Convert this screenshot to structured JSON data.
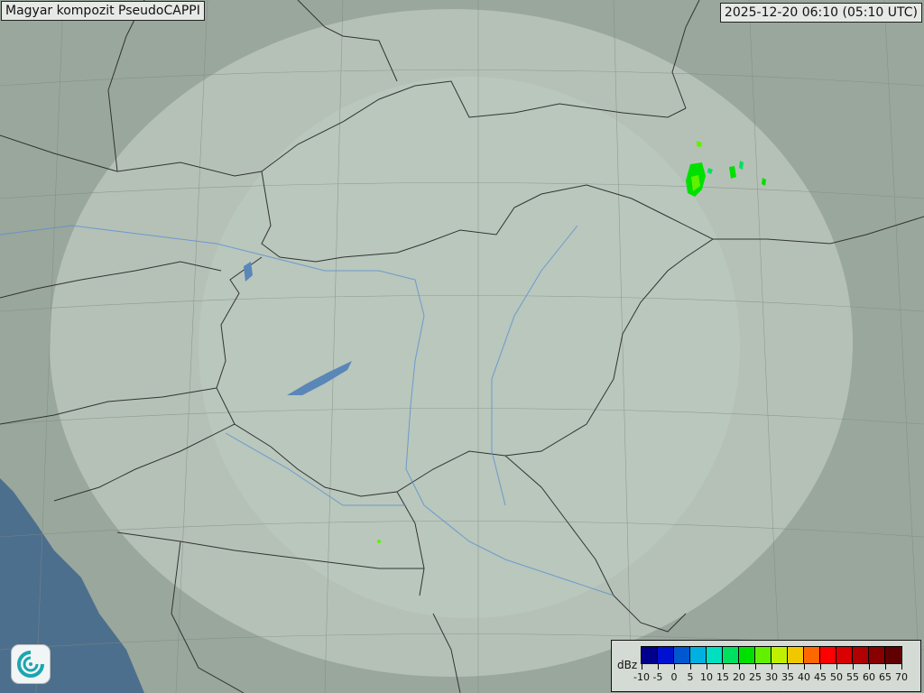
{
  "header": {
    "title": "Magyar kompozit  PseudoCAPPI",
    "timestamp": "2025-12-20 06:10 (05:10 UTC)"
  },
  "legend": {
    "unit": "dBz",
    "ticks": [
      "-10",
      "-5",
      "0",
      "5",
      "10",
      "15",
      "20",
      "25",
      "30",
      "35",
      "40",
      "45",
      "50",
      "55",
      "60",
      "65",
      "70"
    ],
    "colors": [
      "#00008c",
      "#0010d0",
      "#0058d0",
      "#00b0e0",
      "#00e0c0",
      "#00e060",
      "#00e000",
      "#60f000",
      "#c0f000",
      "#f0c800",
      "#ff6800",
      "#ff0000",
      "#d80000",
      "#b00000",
      "#880000",
      "#600000"
    ]
  },
  "map": {
    "land_color": "#9aa79c",
    "coverage_color": "#c8d6cc",
    "sea_color": "#4d6f8e",
    "border_color": "#333333",
    "river_color": "#5b8fd0",
    "lake_color": "#5a86b8"
  },
  "logo": {
    "icon": "swirl-logo-icon"
  }
}
